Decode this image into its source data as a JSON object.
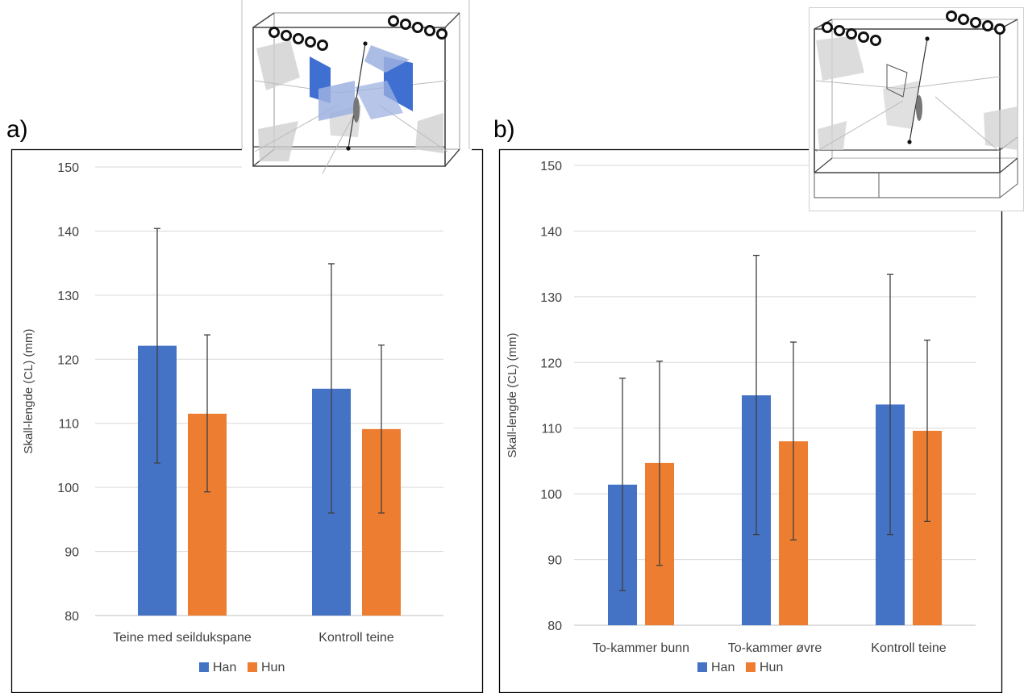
{
  "panels": [
    {
      "label": "a)"
    },
    {
      "label": "b)"
    }
  ],
  "legend": [
    {
      "name": "Han",
      "color": "#4472C4"
    },
    {
      "name": "Hun",
      "color": "#ED7D31"
    }
  ],
  "chart_data": [
    {
      "type": "bar",
      "panel": "a)",
      "ylabel": "Skall-lengde (CL) (mm)",
      "ylim": [
        80,
        150
      ],
      "yticks": [
        80,
        90,
        100,
        110,
        120,
        130,
        140,
        150
      ],
      "grid": true,
      "legend_position": "bottom",
      "categories": [
        "Teine med seildukspane",
        "Kontroll teine"
      ],
      "series": [
        {
          "name": "Han",
          "color": "#4472C4",
          "values": [
            122.1,
            115.4
          ],
          "err_low": [
            103.8,
            96.0
          ],
          "err_high": [
            140.4,
            134.9
          ]
        },
        {
          "name": "Hun",
          "color": "#ED7D31",
          "values": [
            111.5,
            109.1
          ],
          "err_low": [
            99.3,
            96.0
          ],
          "err_high": [
            123.8,
            122.2
          ]
        }
      ]
    },
    {
      "type": "bar",
      "panel": "b)",
      "ylabel": "Skall-lengde (CL) (mm)",
      "ylim": [
        80,
        150
      ],
      "yticks": [
        80,
        90,
        100,
        110,
        120,
        130,
        140,
        150
      ],
      "grid": true,
      "legend_position": "bottom",
      "categories": [
        "To-kammer bunn",
        "To-kammer øvre",
        "Kontroll teine"
      ],
      "series": [
        {
          "name": "Han",
          "color": "#4472C4",
          "values": [
            101.4,
            115.0,
            113.6
          ],
          "err_low": [
            85.3,
            93.8,
            93.8
          ],
          "err_high": [
            117.6,
            136.3,
            133.4
          ]
        },
        {
          "name": "Hun",
          "color": "#ED7D31",
          "values": [
            104.7,
            108.0,
            109.6
          ],
          "err_low": [
            89.1,
            93.0,
            95.8
          ],
          "err_high": [
            120.2,
            123.1,
            123.4
          ]
        }
      ]
    }
  ]
}
